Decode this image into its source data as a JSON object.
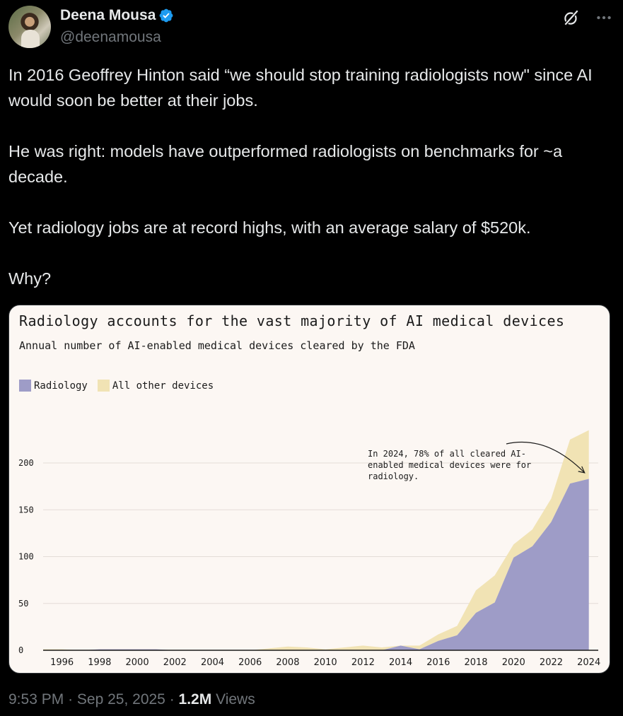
{
  "author": {
    "name": "Deena Mousa",
    "handle": "@deenamousa"
  },
  "icons": {
    "verified": "verified-badge-icon",
    "grok": "grok-icon",
    "more": "more-options-icon"
  },
  "tweet": {
    "paragraphs": [
      "In 2016 Geoffrey Hinton said “we should stop training radiologists now\" since AI would soon be better at their jobs.",
      "He was right: models have outperformed radiologists on benchmarks for ~a decade.",
      "Yet radiology jobs are at record highs, with an average salary of $520k.",
      "Why?"
    ]
  },
  "chart_data": {
    "type": "area",
    "title": "Radiology accounts for the vast majority of AI medical devices",
    "subtitle": "Annual number of AI-enabled medical devices cleared by the FDA",
    "legend": [
      "Radiology",
      "All other devices"
    ],
    "colors": {
      "radiology": "#9e9cc7",
      "other": "#f1e3b4",
      "grid": "#e3dcd7",
      "axis": "#1b1b1b"
    },
    "x": [
      1995,
      1996,
      1997,
      1998,
      1999,
      2000,
      2001,
      2002,
      2003,
      2004,
      2005,
      2006,
      2007,
      2008,
      2009,
      2010,
      2011,
      2012,
      2013,
      2014,
      2015,
      2016,
      2017,
      2018,
      2019,
      2020,
      2021,
      2022,
      2023,
      2024
    ],
    "series": [
      {
        "name": "Radiology",
        "values": [
          0,
          0,
          0,
          1,
          1,
          1,
          1,
          0,
          0,
          0,
          0,
          0,
          0,
          0,
          0,
          0,
          0,
          0,
          0,
          5,
          1,
          10,
          16,
          40,
          51,
          99,
          111,
          137,
          178,
          183
        ]
      },
      {
        "name": "All other devices",
        "values": [
          1,
          1,
          0,
          0,
          0,
          0,
          0,
          0,
          0,
          0,
          0,
          0,
          2,
          4,
          3,
          1,
          3,
          5,
          3,
          0,
          4,
          7,
          10,
          24,
          29,
          14,
          18,
          25,
          47,
          52
        ]
      }
    ],
    "x_tick_labels": [
      "1996",
      "1998",
      "2000",
      "2002",
      "2004",
      "2006",
      "2008",
      "2010",
      "2012",
      "2014",
      "2016",
      "2018",
      "2020",
      "2022",
      "2024"
    ],
    "y_tick_labels": [
      "0",
      "50",
      "100",
      "150",
      "200"
    ],
    "ylim": [
      0,
      240
    ],
    "xlim": [
      1995,
      2024.5
    ],
    "annotation": {
      "lines": [
        "In 2024, 78% of all cleared AI-",
        "enabled medical devices were for",
        "radiology."
      ],
      "target_year": 2024,
      "target_value": 185
    }
  },
  "footer": {
    "time": "9:53 PM",
    "sep1": "·",
    "date": "Sep 25, 2025",
    "sep2": "·",
    "views_count": "1.2M",
    "views_label": "Views"
  }
}
